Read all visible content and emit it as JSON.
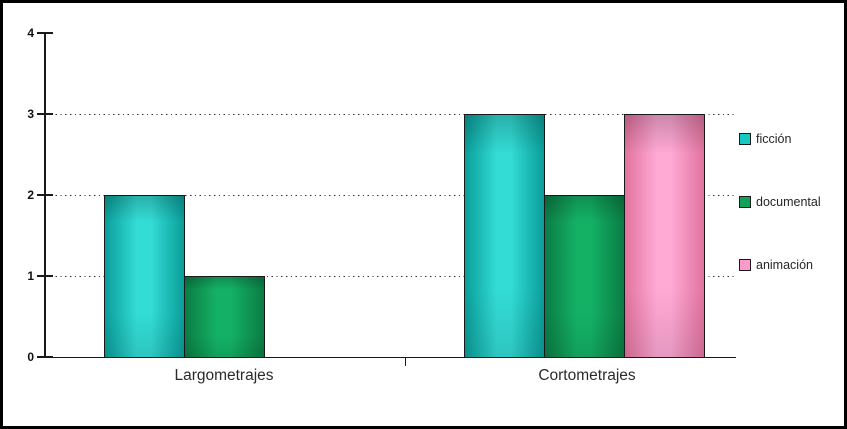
{
  "chart_data": {
    "type": "bar",
    "title": "",
    "xlabel": "",
    "ylabel": "",
    "categories": [
      "Largometrajes",
      "Cortometrajes"
    ],
    "series": [
      {
        "name": "ficción",
        "color": "#17C9C3",
        "color_light": "#33DCD5",
        "color_dark": "#0A9E9A",
        "values": [
          2,
          3
        ]
      },
      {
        "name": "documental",
        "color": "#0FA35A",
        "color_light": "#14B165",
        "color_dark": "#0A7C44",
        "values": [
          1,
          2
        ]
      },
      {
        "name": "animación",
        "color": "#FB9BCC",
        "color_light": "#FFA9D5",
        "color_dark": "#E2739F",
        "values": [
          0,
          3
        ]
      }
    ],
    "ylim": [
      0,
      4
    ],
    "y_ticks": [
      "0",
      "1",
      "2",
      "3",
      "4"
    ],
    "grid": "horizontal-dotted",
    "legend_position": "right"
  },
  "colors": {
    "axis": "#1a1a1a",
    "text": "#262626",
    "background": "#ffffff",
    "outer_border": "#000000"
  }
}
